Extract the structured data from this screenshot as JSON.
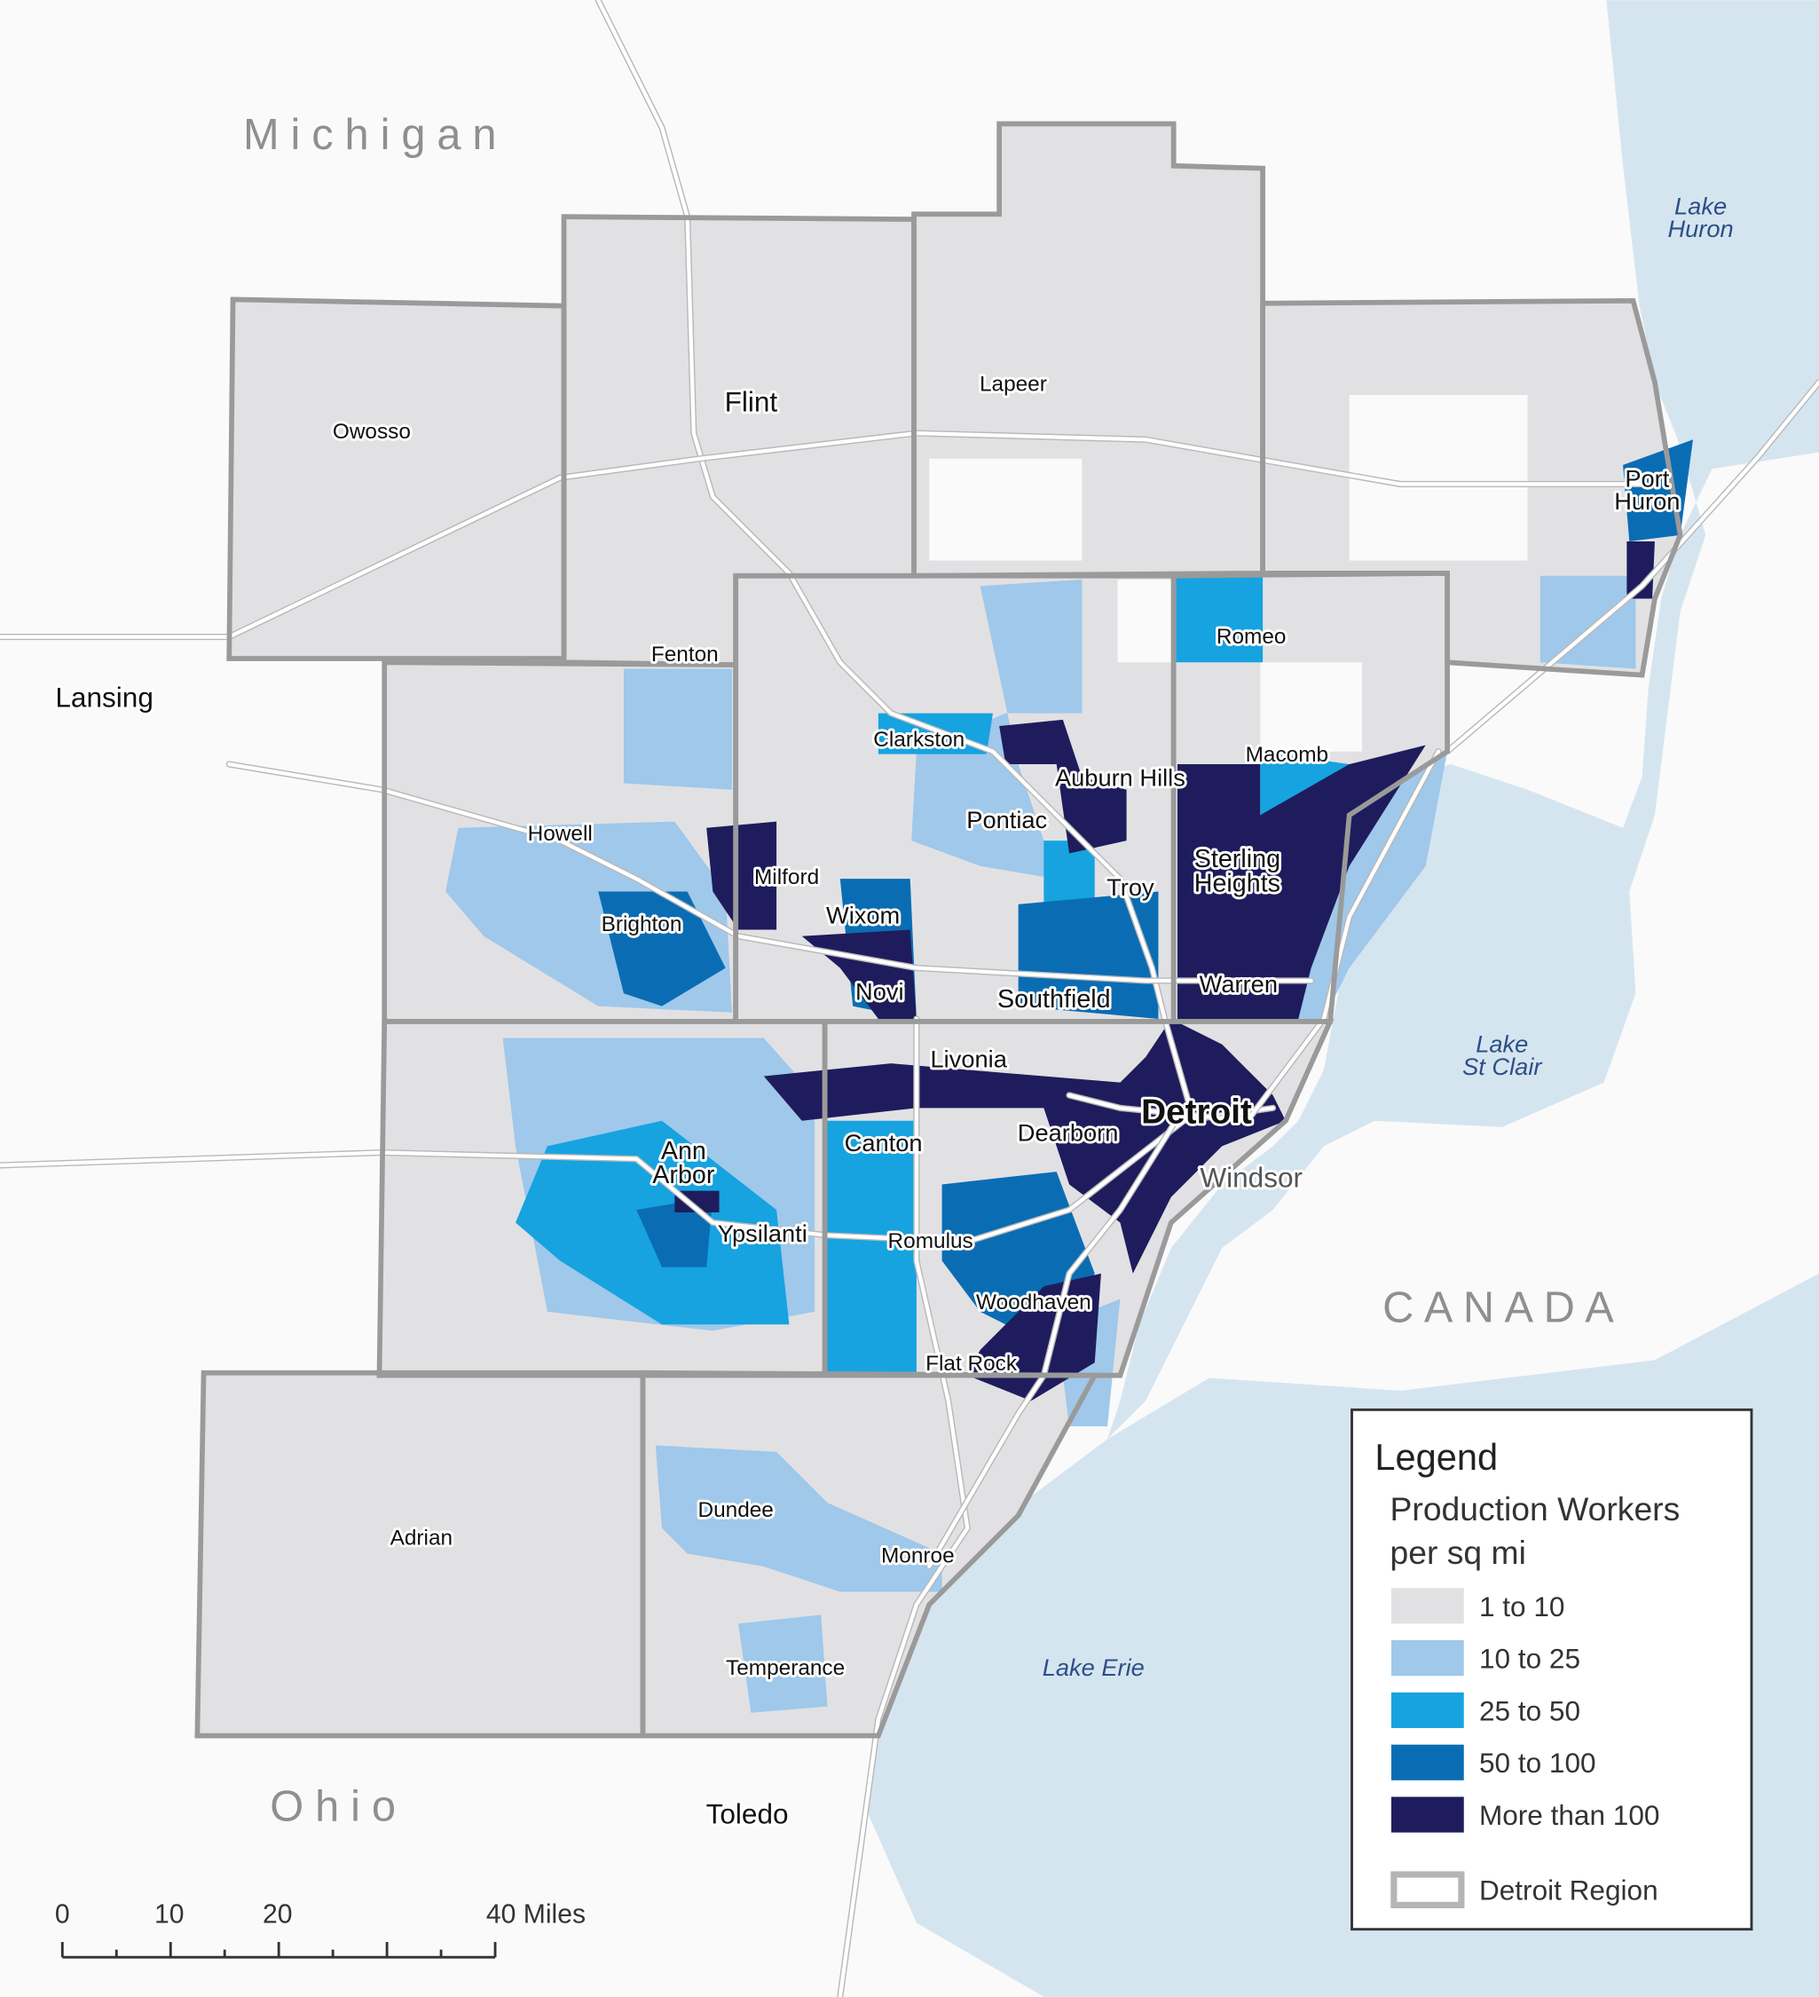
{
  "regions": [
    {
      "lines": [
        "Michigan"
      ]
    },
    {
      "lines": [
        "Ohio"
      ]
    },
    {
      "lines": [
        "CANADA"
      ]
    }
  ],
  "water": [
    {
      "lines": [
        "Lake",
        "Huron"
      ]
    },
    {
      "lines": [
        "Lake",
        "St Clair"
      ]
    },
    {
      "lines": [
        "Lake Erie"
      ]
    }
  ],
  "cities": [
    {
      "lines": [
        "Owosso"
      ]
    },
    {
      "lines": [
        "Flint"
      ]
    },
    {
      "lines": [
        "Lapeer"
      ]
    },
    {
      "lines": [
        "Port",
        "Huron"
      ]
    },
    {
      "lines": [
        "Fenton"
      ]
    },
    {
      "lines": [
        "Lansing"
      ]
    },
    {
      "lines": [
        "Romeo"
      ]
    },
    {
      "lines": [
        "Clarkston"
      ]
    },
    {
      "lines": [
        "Macomb"
      ]
    },
    {
      "lines": [
        "Auburn Hills"
      ]
    },
    {
      "lines": [
        "Pontiac"
      ]
    },
    {
      "lines": [
        "Sterling",
        "Heights"
      ]
    },
    {
      "lines": [
        "Howell"
      ]
    },
    {
      "lines": [
        "Milford"
      ]
    },
    {
      "lines": [
        "Troy"
      ]
    },
    {
      "lines": [
        "Wixom"
      ]
    },
    {
      "lines": [
        "Brighton"
      ]
    },
    {
      "lines": [
        "Novi"
      ]
    },
    {
      "lines": [
        "Southfield"
      ]
    },
    {
      "lines": [
        "Warren"
      ]
    },
    {
      "lines": [
        "Livonia"
      ]
    },
    {
      "lines": [
        "Detroit"
      ]
    },
    {
      "lines": [
        "Dearborn"
      ]
    },
    {
      "lines": [
        "Canton"
      ]
    },
    {
      "lines": [
        "Ann",
        "Arbor"
      ]
    },
    {
      "lines": [
        "Windsor"
      ]
    },
    {
      "lines": [
        "Ypsilanti"
      ]
    },
    {
      "lines": [
        "Romulus"
      ]
    },
    {
      "lines": [
        "Woodhaven"
      ]
    },
    {
      "lines": [
        "Flat Rock"
      ]
    },
    {
      "lines": [
        "Dundee"
      ]
    },
    {
      "lines": [
        "Monroe"
      ]
    },
    {
      "lines": [
        "Adrian"
      ]
    },
    {
      "lines": [
        "Temperance"
      ]
    },
    {
      "lines": [
        "Toledo"
      ]
    }
  ],
  "legend": {
    "title": "Legend",
    "subtitle": [
      "Production Workers",
      "per sq mi"
    ],
    "items": [
      "1 to 10",
      "10 to 25",
      "25 to 50",
      "50 to 100",
      "More than 100"
    ],
    "boundary": "Detroit Region"
  },
  "scale_bar": {
    "labels": [
      "0",
      "10",
      "20",
      "40 Miles"
    ]
  }
}
